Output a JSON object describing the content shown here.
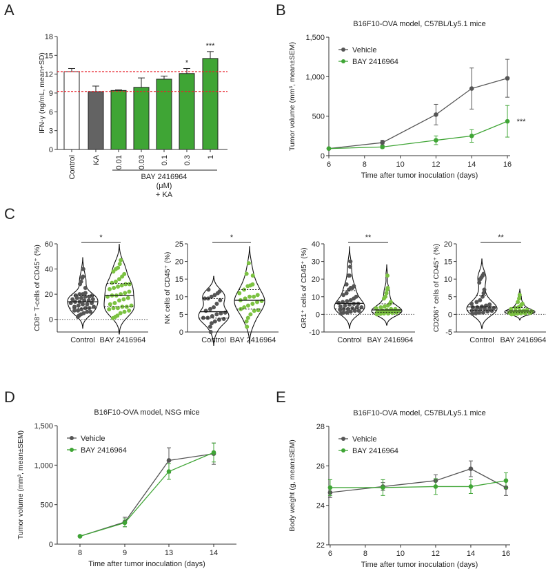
{
  "colors": {
    "green": "#3fa535",
    "green_light": "#7cc242",
    "dark_gray": "#555555",
    "ka_bar": "#636363",
    "control_bar": "#ffffff",
    "ref_line": "#e8202a"
  },
  "chart_data": [
    {
      "panel": "A",
      "type": "bar",
      "ylabel": "IFN-γ (ng/mL, mean+SD)",
      "ylim": [
        0,
        18
      ],
      "yticks": [
        0,
        3,
        6,
        9,
        12,
        15,
        18
      ],
      "categories": [
        "Control",
        "KA",
        "0.01",
        "0.03",
        "0.1",
        "0.3",
        "1"
      ],
      "values": [
        12.4,
        9.2,
        9.4,
        9.9,
        11.2,
        12.1,
        14.5
      ],
      "errors": [
        0.5,
        0.9,
        0.1,
        1.5,
        0.5,
        0.8,
        1.1
      ],
      "bar_colors": [
        "#ffffff",
        "#636363",
        "#3fa535",
        "#3fa535",
        "#3fa535",
        "#3fa535",
        "#3fa535"
      ],
      "significance": [
        "",
        "",
        "",
        "",
        "",
        "*",
        "***"
      ],
      "reference_lines": [
        12.4,
        9.25
      ],
      "group_label": [
        "BAY 2416964",
        "(μM)",
        "+ KA"
      ]
    },
    {
      "panel": "B",
      "type": "line",
      "title": "B16F10-OVA model, C57BL/Ly5.1 mice",
      "xlabel": "Time after tumor inoculation (days)",
      "ylabel": "Tumor volume (mm³, mean±SEM)",
      "xlim": [
        6,
        16
      ],
      "xticks": [
        6,
        8,
        10,
        12,
        14,
        16
      ],
      "ylim": [
        0,
        1500
      ],
      "yticks": [
        0,
        500,
        1000,
        1500
      ],
      "ytick_labels": [
        "0",
        "500",
        "1,000",
        "1,500"
      ],
      "legend": "top-left",
      "series": [
        {
          "name": "Vehicle",
          "color": "#555555",
          "x": [
            6,
            9,
            12,
            14,
            16
          ],
          "y": [
            90,
            165,
            520,
            850,
            980
          ],
          "err": [
            10,
            30,
            130,
            260,
            240
          ]
        },
        {
          "name": "BAY 2416964",
          "color": "#3fa535",
          "x": [
            6,
            9,
            12,
            14,
            16
          ],
          "y": [
            90,
            110,
            195,
            250,
            435
          ],
          "err": [
            10,
            15,
            55,
            80,
            200
          ]
        }
      ],
      "annotation": "***"
    },
    {
      "panel": "C",
      "type": "violin",
      "categories": [
        "Control",
        "BAY 2416964"
      ],
      "subplots": [
        {
          "ylabel": "CD8⁺ T-cells of CD45⁺ (%)",
          "ylim": [
            -10,
            60
          ],
          "yticks": [
            0,
            20,
            40,
            60
          ],
          "significance": "*",
          "groups": [
            [
              2,
              3,
              4,
              5,
              6,
              6,
              7,
              7,
              8,
              9,
              9,
              10,
              10,
              11,
              12,
              12,
              13,
              13,
              14,
              14,
              15,
              15,
              16,
              16,
              17,
              17,
              18,
              18,
              19,
              19,
              20,
              20,
              21,
              25,
              28,
              30,
              33,
              34,
              40
            ],
            [
              1,
              2,
              3,
              5,
              6,
              7,
              8,
              9,
              9,
              10,
              10,
              11,
              12,
              13,
              15,
              16,
              17,
              18,
              19,
              19,
              20,
              21,
              22,
              24,
              25,
              26,
              27,
              28,
              28,
              29,
              30,
              32,
              34,
              36,
              38,
              40,
              41,
              44,
              47
            ]
          ]
        },
        {
          "ylabel": "NK cells of CD45⁺ (%)",
          "ylim": [
            0,
            25
          ],
          "yticks": [
            0,
            5,
            10,
            15,
            20,
            25
          ],
          "significance": "*",
          "groups": [
            [
              0,
              1.5,
              2.5,
              3,
              3.5,
              3.7,
              4,
              4,
              4.5,
              5,
              5.3,
              5.5,
              6,
              6.5,
              7,
              8,
              9,
              9.5,
              9.5,
              10,
              10.5,
              11,
              11.5,
              12
            ],
            [
              1.5,
              3,
              4,
              5,
              6,
              6.2,
              6.5,
              7,
              7.5,
              8,
              8.5,
              8.8,
              9,
              9.5,
              10,
              10,
              10.5,
              11,
              12,
              13,
              13.2,
              13.5,
              16,
              16.5,
              19.5
            ]
          ]
        },
        {
          "ylabel": "GR1⁺ cells of CD45⁺ (%)",
          "ylim": [
            -10,
            40
          ],
          "yticks": [
            -10,
            0,
            10,
            20,
            30,
            40
          ],
          "significance": "**",
          "groups": [
            [
              0.5,
              1,
              1,
              1.5,
              2,
              2,
              2.5,
              3,
              3,
              3.5,
              4,
              4,
              4.5,
              5,
              5.5,
              6,
              6,
              6.5,
              7,
              7.5,
              8,
              9,
              10,
              11,
              12,
              14,
              15,
              15,
              16,
              17,
              22,
              22,
              27,
              30
            ],
            [
              0,
              0.3,
              0.5,
              0.5,
              0.8,
              1,
              1,
              1.2,
              1.5,
              1.5,
              1.8,
              2,
              2,
              2.2,
              2.5,
              3,
              3,
              3.5,
              4,
              4.5,
              5,
              6,
              7,
              9,
              10,
              12,
              14,
              15,
              22
            ]
          ]
        },
        {
          "ylabel": "CD206⁺ cells of CD45⁺ (%)",
          "ylim": [
            -5,
            20
          ],
          "yticks": [
            -5,
            0,
            5,
            10,
            15,
            20
          ],
          "significance": "**",
          "groups": [
            [
              0.2,
              0.3,
              0.5,
              0.5,
              0.8,
              1,
              1,
              1.2,
              1.4,
              1.5,
              1.6,
              1.8,
              2,
              2,
              2.2,
              2.5,
              2.8,
              3,
              3.5,
              4,
              5,
              6,
              7,
              9,
              10,
              10.5,
              11,
              11.5
            ],
            [
              0,
              0.1,
              0.2,
              0.3,
              0.3,
              0.4,
              0.5,
              0.5,
              0.6,
              0.7,
              0.8,
              0.8,
              0.9,
              1,
              1,
              1.1,
              1.3,
              1.5,
              1.8,
              2,
              2.3,
              2.8,
              3,
              3.5,
              4.5,
              5.5
            ]
          ]
        }
      ]
    },
    {
      "panel": "D",
      "type": "line",
      "title": "B16F10-OVA model, NSG mice",
      "xlabel": "Time after tumor inoculation (days)",
      "ylabel": "Tumor volume (mm³, mean±SEM)",
      "categorical_x": true,
      "xticks": [
        8,
        9,
        13,
        14
      ],
      "ylim": [
        0,
        1500
      ],
      "yticks": [
        0,
        500,
        1000,
        1500
      ],
      "ytick_labels": [
        "0",
        "500",
        "1,000",
        "1,500"
      ],
      "legend": "top-left",
      "series": [
        {
          "name": "Vehicle",
          "color": "#555555",
          "x": [
            8,
            9,
            13,
            14
          ],
          "y": [
            100,
            280,
            1060,
            1145
          ],
          "err": [
            5,
            60,
            160,
            135
          ]
        },
        {
          "name": "BAY 2416964",
          "color": "#3fa535",
          "x": [
            8,
            9,
            13,
            14
          ],
          "y": [
            100,
            270,
            920,
            1160
          ],
          "err": [
            5,
            50,
            100,
            120
          ]
        }
      ]
    },
    {
      "panel": "E",
      "type": "line",
      "title": "B16F10-OVA model, C57BL/Ly5.1 mice",
      "xlabel": "Time after tumor inoculation (days)",
      "ylabel": "Body weight (g, mean±SEM)",
      "xlim": [
        5,
        16.5
      ],
      "xticks": [
        6,
        8,
        10,
        12,
        14,
        16
      ],
      "ylim": [
        22,
        28
      ],
      "yticks": [
        22,
        24,
        26,
        28
      ],
      "legend": "top-left",
      "series": [
        {
          "name": "Vehicle",
          "color": "#555555",
          "x": [
            6,
            9,
            12,
            14,
            16
          ],
          "y": [
            24.65,
            24.95,
            25.25,
            25.85,
            24.9
          ],
          "err": [
            0.25,
            0.2,
            0.3,
            0.4,
            0.4
          ]
        },
        {
          "name": "BAY 2416964",
          "color": "#3fa535",
          "x": [
            6,
            9,
            12,
            14,
            16
          ],
          "y": [
            24.9,
            24.9,
            24.95,
            24.95,
            25.25
          ],
          "err": [
            0.4,
            0.4,
            0.4,
            0.35,
            0.4
          ]
        }
      ]
    }
  ]
}
